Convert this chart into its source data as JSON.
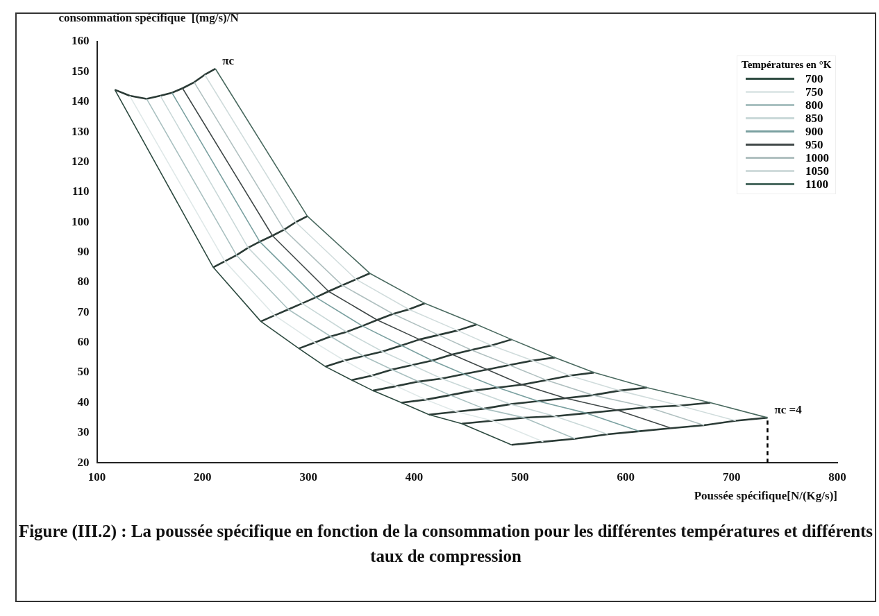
{
  "chart_data": {
    "type": "line",
    "title": "Figure (III.2) : La poussée spécifique en fonction de la consommation pour les différentes températures et  différents taux de compression",
    "xlabel": "Poussée spécifique[N/(Kg/s)]",
    "ylabel": "consommation spécifique  [(mg/s)/N",
    "legend_title": "Températures en °K",
    "legend": "top right",
    "grid": false,
    "xlim": [
      100,
      800
    ],
    "xticks": [
      100,
      200,
      300,
      400,
      500,
      600,
      700,
      800
    ],
    "ylim": [
      20,
      160
    ],
    "yticks": [
      20,
      30,
      40,
      50,
      60,
      70,
      80,
      90,
      100,
      110,
      120,
      130,
      140,
      150,
      160
    ],
    "annotations": [
      {
        "text": "πc",
        "x": 212,
        "y": 151
      },
      {
        "text": "πc =4",
        "x": 734,
        "y": 35
      }
    ],
    "series": [
      {
        "name": "700",
        "color": "#2d4a40",
        "x": [
          117,
          210,
          255,
          291,
          316,
          341,
          361,
          388,
          414,
          445,
          492
        ],
        "values": [
          144,
          85,
          67,
          58,
          52,
          47.5,
          44,
          40,
          36,
          33,
          26
        ]
      },
      {
        "name": "750",
        "color": "#dfe8e8",
        "x": [
          131,
          221,
          268,
          306,
          334,
          360,
          383,
          411,
          440,
          474,
          522
        ],
        "values": [
          142,
          87,
          69,
          60,
          54,
          49,
          45.5,
          41,
          37,
          34,
          27
        ]
      },
      {
        "name": "800",
        "color": "#a9c0c0",
        "x": [
          147,
          232,
          281,
          321,
          352,
          379,
          404,
          434,
          466,
          504,
          552
        ],
        "values": [
          141,
          89,
          71,
          62,
          55.5,
          51,
          47,
          42.5,
          38,
          35,
          28
        ]
      },
      {
        "name": "850",
        "color": "#c9d8d8",
        "x": [
          160,
          243,
          294,
          336,
          370,
          398,
          426,
          456,
          491,
          533,
          583
        ],
        "values": [
          142,
          91.5,
          73,
          63.5,
          57,
          52.5,
          48,
          44,
          39.5,
          35.5,
          29.5
        ]
      },
      {
        "name": "900",
        "color": "#7aa0a0",
        "x": [
          171,
          254,
          307,
          351,
          388,
          417,
          447,
          479,
          517,
          563,
          613
        ],
        "values": [
          143,
          93.5,
          75,
          65.5,
          59,
          54,
          49.5,
          45,
          40.5,
          36.5,
          30.5
        ]
      },
      {
        "name": "950",
        "color": "#404848",
        "x": [
          181,
          266,
          319,
          365,
          405,
          436,
          469,
          502,
          543,
          592,
          643
        ],
        "values": [
          144.5,
          95.5,
          77,
          67.5,
          61,
          56,
          51,
          46,
          41.5,
          37.5,
          31.5
        ]
      },
      {
        "name": "1000",
        "color": "#b0c0c0",
        "x": [
          192,
          277,
          332,
          380,
          423,
          454,
          490,
          525,
          569,
          621,
          674
        ],
        "values": [
          146.5,
          97.5,
          79,
          69.5,
          62.5,
          57.5,
          52.5,
          47.5,
          42.5,
          38.5,
          32.5
        ]
      },
      {
        "name": "1050",
        "color": "#d0dcdc",
        "x": [
          202,
          288,
          345,
          395,
          441,
          473,
          512,
          547,
          594,
          651,
          704
        ],
        "values": [
          149,
          100,
          81,
          71,
          64,
          59,
          54,
          49,
          44,
          39,
          34
        ]
      },
      {
        "name": "1100",
        "color": "#4a6a60",
        "x": [
          212,
          299,
          358,
          410,
          459,
          492,
          533,
          570,
          620,
          680,
          734
        ],
        "values": [
          151,
          102,
          83,
          73,
          66,
          61,
          55,
          50,
          45,
          40,
          35
        ]
      },
      {
        "color": "#2b3b36",
        "x": [
          117,
          131,
          147,
          160,
          171,
          181,
          192,
          202,
          212
        ],
        "values": [
          144,
          142,
          141,
          142,
          143,
          144.5,
          146.5,
          149,
          151
        ]
      },
      {
        "color": "#2b3b36",
        "x": [
          210,
          221,
          232,
          243,
          254,
          266,
          277,
          288,
          299
        ],
        "values": [
          85,
          87,
          89,
          91.5,
          93.5,
          95.5,
          97.5,
          100,
          102
        ]
      },
      {
        "color": "#2b3b36",
        "x": [
          255,
          268,
          281,
          294,
          307,
          319,
          332,
          345,
          358
        ],
        "values": [
          67,
          69,
          71,
          73,
          75,
          77,
          79,
          81,
          83
        ]
      },
      {
        "color": "#2b3b36",
        "x": [
          291,
          306,
          321,
          336,
          351,
          365,
          380,
          395,
          410
        ],
        "values": [
          58,
          60,
          62,
          63.5,
          65.5,
          67.5,
          69.5,
          71,
          73
        ]
      },
      {
        "color": "#2b3b36",
        "x": [
          316,
          334,
          352,
          370,
          388,
          405,
          423,
          441,
          459
        ],
        "values": [
          52,
          54,
          55.5,
          57,
          59,
          61,
          62.5,
          64,
          66
        ]
      },
      {
        "color": "#2b3b36",
        "x": [
          341,
          360,
          379,
          398,
          417,
          436,
          454,
          473,
          492
        ],
        "values": [
          47.5,
          49,
          51,
          52.5,
          54,
          56,
          57.5,
          59,
          61
        ]
      },
      {
        "color": "#2b3b36",
        "x": [
          361,
          383,
          404,
          426,
          447,
          469,
          490,
          512,
          533
        ],
        "values": [
          44,
          45.5,
          47,
          48,
          49.5,
          51,
          52.5,
          54,
          55
        ]
      },
      {
        "color": "#2b3b36",
        "x": [
          388,
          411,
          434,
          456,
          479,
          502,
          525,
          547,
          570
        ],
        "values": [
          40,
          41,
          42.5,
          44,
          45,
          46,
          47.5,
          49,
          50
        ]
      },
      {
        "color": "#2b3b36",
        "x": [
          414,
          440,
          466,
          491,
          517,
          543,
          569,
          594,
          620
        ],
        "values": [
          36,
          37,
          38,
          39.5,
          40.5,
          41.5,
          42.5,
          44,
          45
        ]
      },
      {
        "color": "#2b3b36",
        "x": [
          445,
          474,
          504,
          533,
          563,
          592,
          621,
          651,
          680
        ],
        "values": [
          33,
          34,
          35,
          35.5,
          36.5,
          37.5,
          38.5,
          39,
          40
        ]
      },
      {
        "color": "#2b3b36",
        "x": [
          492,
          522,
          552,
          583,
          613,
          643,
          674,
          704,
          734
        ],
        "values": [
          26,
          27,
          28,
          29.5,
          30.5,
          31.5,
          32.5,
          34,
          35
        ]
      },
      {
        "color": "#000000",
        "line_style": "dashed",
        "x": [
          734,
          734
        ],
        "values": [
          20,
          35
        ]
      }
    ]
  }
}
